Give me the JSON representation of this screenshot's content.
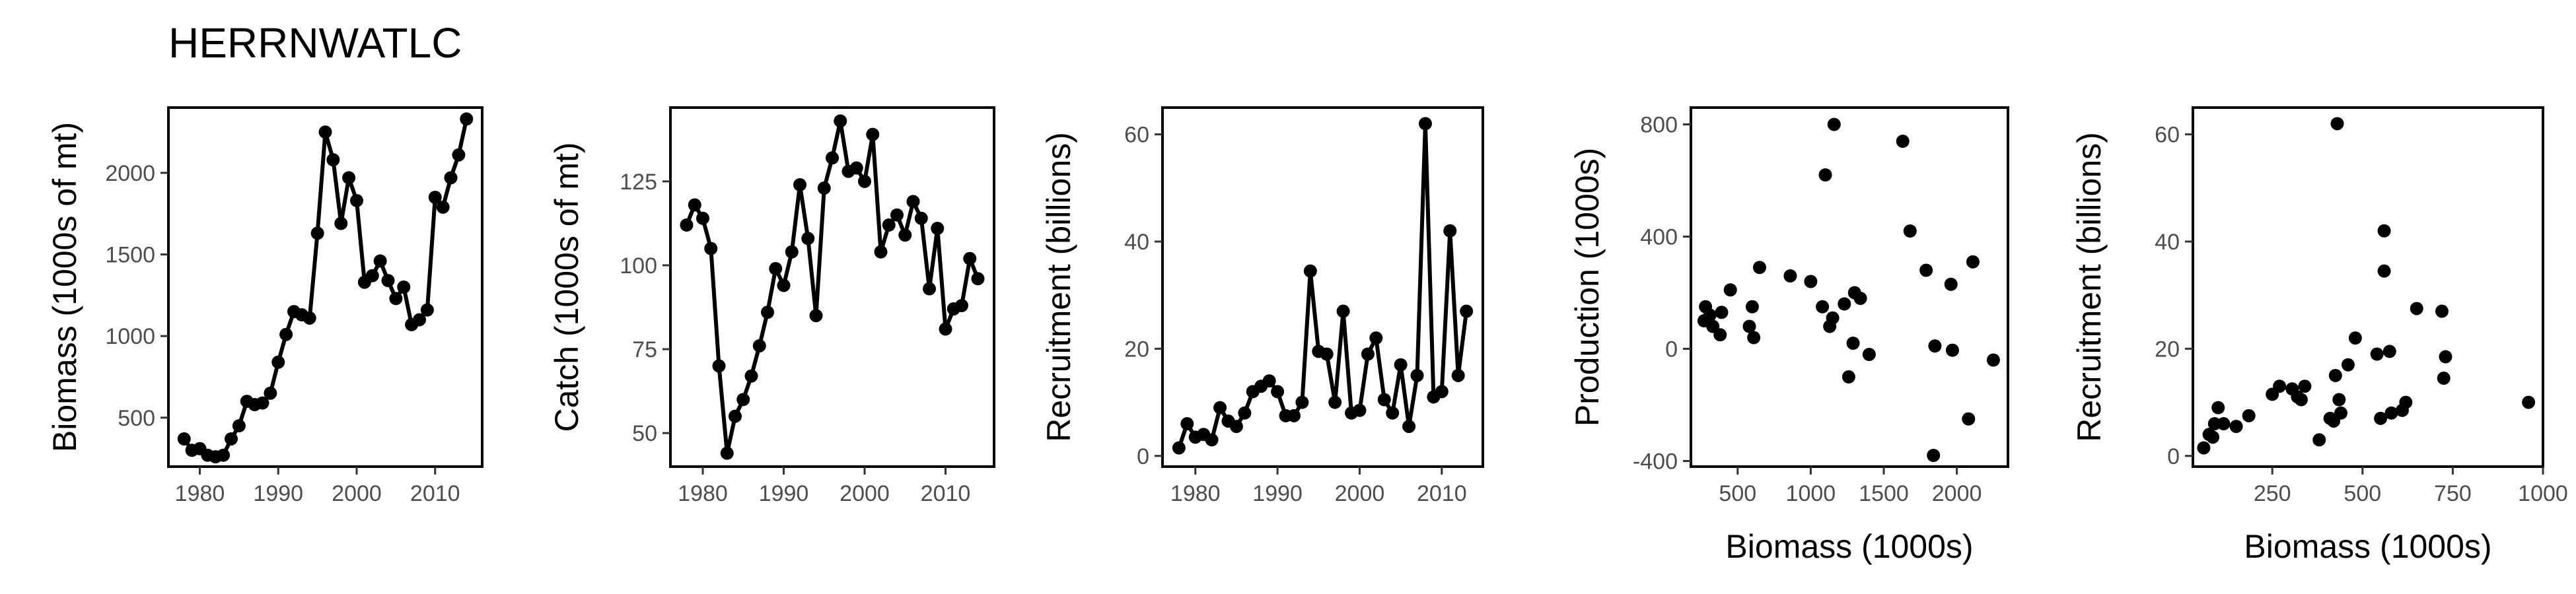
{
  "page": {
    "title": "HERRNWATLC"
  },
  "chart_data": [
    {
      "type": "line",
      "xlabel": "",
      "ylabel": "Biomass (1000s of mt)",
      "xlim": [
        1976,
        2016
      ],
      "ylim": [
        200,
        2400
      ],
      "xticks": [
        1980,
        1990,
        2000,
        2010
      ],
      "yticks": [
        500,
        1000,
        1500,
        2000
      ],
      "points": [
        [
          1978,
          370
        ],
        [
          1979,
          300
        ],
        [
          1980,
          310
        ],
        [
          1981,
          270
        ],
        [
          1982,
          260
        ],
        [
          1983,
          270
        ],
        [
          1984,
          370
        ],
        [
          1985,
          450
        ],
        [
          1986,
          600
        ],
        [
          1987,
          580
        ],
        [
          1988,
          590
        ],
        [
          1989,
          650
        ],
        [
          1990,
          840
        ],
        [
          1991,
          1010
        ],
        [
          1992,
          1150
        ],
        [
          1993,
          1130
        ],
        [
          1994,
          1110
        ],
        [
          1995,
          1630
        ],
        [
          1996,
          2250
        ],
        [
          1997,
          2080
        ],
        [
          1998,
          1690
        ],
        [
          1999,
          1970
        ],
        [
          2000,
          1830
        ],
        [
          2001,
          1330
        ],
        [
          2002,
          1370
        ],
        [
          2003,
          1460
        ],
        [
          2004,
          1340
        ],
        [
          2005,
          1230
        ],
        [
          2006,
          1300
        ],
        [
          2007,
          1070
        ],
        [
          2008,
          1100
        ],
        [
          2009,
          1160
        ],
        [
          2010,
          1850
        ],
        [
          2011,
          1790
        ],
        [
          2012,
          1970
        ],
        [
          2013,
          2110
        ],
        [
          2014,
          2330
        ]
      ]
    },
    {
      "type": "line",
      "xlabel": "",
      "ylabel": "Catch (1000s of mt)",
      "xlim": [
        1976,
        2016
      ],
      "ylim": [
        40,
        147
      ],
      "xticks": [
        1980,
        1990,
        2000,
        2010
      ],
      "yticks": [
        50,
        75,
        100,
        125
      ],
      "points": [
        [
          1978,
          112
        ],
        [
          1979,
          118
        ],
        [
          1980,
          114
        ],
        [
          1981,
          105
        ],
        [
          1982,
          70
        ],
        [
          1983,
          44
        ],
        [
          1984,
          55
        ],
        [
          1985,
          60
        ],
        [
          1986,
          67
        ],
        [
          1987,
          76
        ],
        [
          1988,
          86
        ],
        [
          1989,
          99
        ],
        [
          1990,
          94
        ],
        [
          1991,
          104
        ],
        [
          1992,
          124
        ],
        [
          1993,
          108
        ],
        [
          1994,
          85
        ],
        [
          1995,
          123
        ],
        [
          1996,
          132
        ],
        [
          1997,
          143
        ],
        [
          1998,
          128
        ],
        [
          1999,
          129
        ],
        [
          2000,
          125
        ],
        [
          2001,
          139
        ],
        [
          2002,
          104
        ],
        [
          2003,
          112
        ],
        [
          2004,
          115
        ],
        [
          2005,
          109
        ],
        [
          2006,
          119
        ],
        [
          2007,
          114
        ],
        [
          2008,
          93
        ],
        [
          2009,
          111
        ],
        [
          2010,
          81
        ],
        [
          2011,
          87
        ],
        [
          2012,
          88
        ],
        [
          2013,
          102
        ],
        [
          2014,
          96
        ]
      ]
    },
    {
      "type": "line",
      "xlabel": "",
      "ylabel": "Recruitment (billions)",
      "xlim": [
        1976,
        2015
      ],
      "ylim": [
        -2,
        65
      ],
      "xticks": [
        1980,
        1990,
        2000,
        2010
      ],
      "yticks": [
        0,
        20,
        40,
        60
      ],
      "points": [
        [
          1978,
          1.5
        ],
        [
          1979,
          6
        ],
        [
          1980,
          3.5
        ],
        [
          1981,
          4
        ],
        [
          1982,
          3
        ],
        [
          1983,
          9
        ],
        [
          1984,
          6.5
        ],
        [
          1985,
          5.5
        ],
        [
          1986,
          8
        ],
        [
          1987,
          12
        ],
        [
          1988,
          13
        ],
        [
          1989,
          14
        ],
        [
          1990,
          12
        ],
        [
          1991,
          7.5
        ],
        [
          1992,
          7.5
        ],
        [
          1993,
          10
        ],
        [
          1994,
          34.5
        ],
        [
          1995,
          19.5
        ],
        [
          1996,
          19
        ],
        [
          1997,
          10
        ],
        [
          1998,
          27
        ],
        [
          1999,
          8
        ],
        [
          2000,
          8.5
        ],
        [
          2001,
          19
        ],
        [
          2002,
          22
        ],
        [
          2003,
          10.5
        ],
        [
          2004,
          8
        ],
        [
          2005,
          17
        ],
        [
          2006,
          5.5
        ],
        [
          2007,
          15
        ],
        [
          2008,
          62
        ],
        [
          2009,
          11
        ],
        [
          2010,
          12
        ],
        [
          2011,
          42
        ],
        [
          2012,
          15
        ],
        [
          2013,
          27
        ]
      ]
    },
    {
      "type": "scatter",
      "xlabel": "Biomass (1000s)",
      "ylabel": "Production (1000s)",
      "xlim": [
        180,
        2350
      ],
      "ylim": [
        -420,
        860
      ],
      "xticks": [
        500,
        1000,
        1500,
        2000
      ],
      "yticks": [
        -400,
        0,
        400,
        800
      ],
      "points": [
        [
          270,
          100
        ],
        [
          280,
          150
        ],
        [
          310,
          120
        ],
        [
          330,
          80
        ],
        [
          380,
          50
        ],
        [
          390,
          130
        ],
        [
          450,
          210
        ],
        [
          580,
          80
        ],
        [
          600,
          150
        ],
        [
          610,
          40
        ],
        [
          650,
          290
        ],
        [
          860,
          260
        ],
        [
          1000,
          240
        ],
        [
          1080,
          150
        ],
        [
          1100,
          620
        ],
        [
          1130,
          80
        ],
        [
          1150,
          110
        ],
        [
          1160,
          800
        ],
        [
          1230,
          160
        ],
        [
          1260,
          -100
        ],
        [
          1290,
          20
        ],
        [
          1300,
          200
        ],
        [
          1340,
          180
        ],
        [
          1400,
          -20
        ],
        [
          1630,
          740
        ],
        [
          1680,
          420
        ],
        [
          1790,
          280
        ],
        [
          1840,
          -380
        ],
        [
          1850,
          10
        ],
        [
          1960,
          230
        ],
        [
          1970,
          -5
        ],
        [
          2080,
          -250
        ],
        [
          2110,
          310
        ],
        [
          2250,
          -40
        ]
      ]
    },
    {
      "type": "scatter",
      "xlabel": "Biomass (1000s)",
      "ylabel": "Recruitment (billions)",
      "xlim": [
        30,
        1000
      ],
      "ylim": [
        -2,
        65
      ],
      "xticks": [
        250,
        500,
        750,
        1000
      ],
      "yticks": [
        0,
        20,
        40,
        60
      ],
      "points": [
        [
          60,
          1.5
        ],
        [
          75,
          4
        ],
        [
          85,
          3.5
        ],
        [
          90,
          6
        ],
        [
          100,
          9
        ],
        [
          115,
          6
        ],
        [
          150,
          5.5
        ],
        [
          185,
          7.5
        ],
        [
          250,
          11.5
        ],
        [
          270,
          13
        ],
        [
          305,
          12.5
        ],
        [
          320,
          11
        ],
        [
          330,
          10.5
        ],
        [
          340,
          13
        ],
        [
          380,
          3
        ],
        [
          410,
          7
        ],
        [
          420,
          6.5
        ],
        [
          425,
          15
        ],
        [
          430,
          62
        ],
        [
          435,
          10.5
        ],
        [
          440,
          8
        ],
        [
          460,
          17
        ],
        [
          480,
          22
        ],
        [
          540,
          19
        ],
        [
          550,
          7
        ],
        [
          560,
          34.5
        ],
        [
          560,
          42
        ],
        [
          575,
          19.5
        ],
        [
          580,
          8
        ],
        [
          610,
          8.5
        ],
        [
          620,
          10
        ],
        [
          650,
          27.5
        ],
        [
          720,
          27
        ],
        [
          725,
          14.5
        ],
        [
          730,
          18.5
        ],
        [
          960,
          10
        ]
      ]
    }
  ]
}
